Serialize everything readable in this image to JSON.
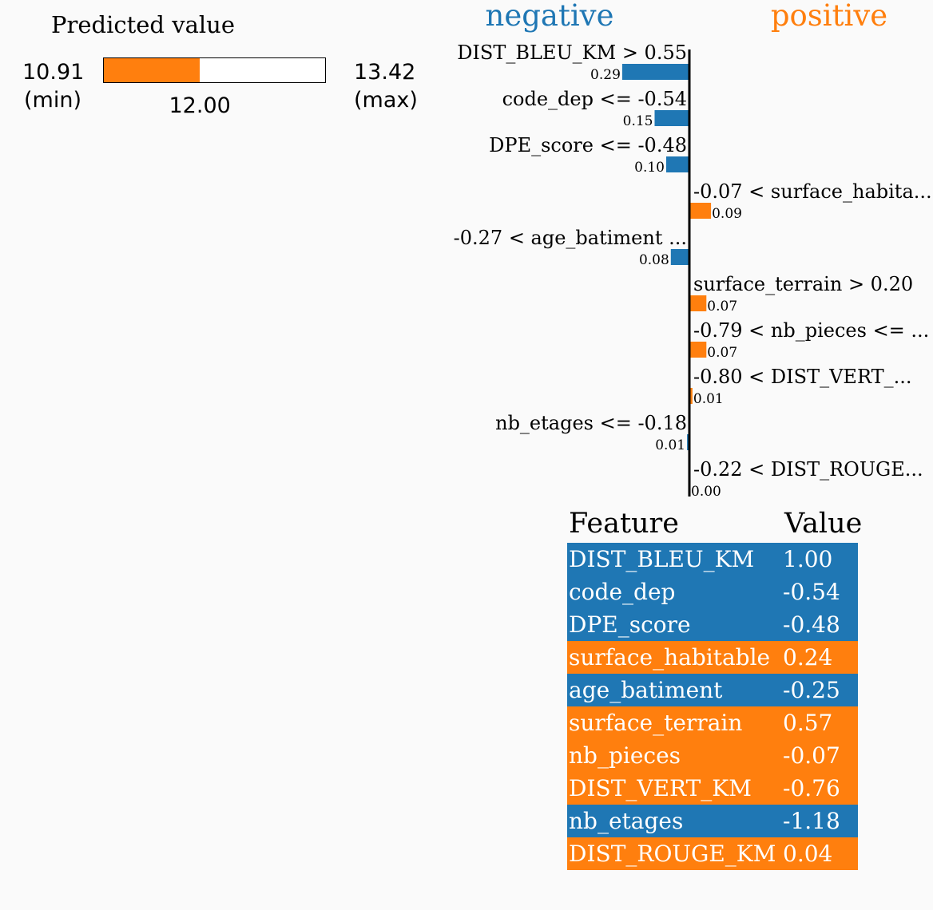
{
  "predicted": {
    "title": "Predicted value",
    "min": "10.91",
    "max": "13.42",
    "min_label": "(min)",
    "max_label": "(max)",
    "value": "12.00",
    "min_num": 10.91,
    "max_num": 13.42,
    "value_num": 12.0,
    "fill_color": "#ff7f0e"
  },
  "chart_data": {
    "type": "bar",
    "negative_label": "negative",
    "positive_label": "positive",
    "negative_color": "#1f77b4",
    "positive_color": "#ff7f0e",
    "categories": [
      "DIST_BLEU_KM > 0.55",
      "code_dep <= -0.54",
      "DPE_score <= -0.48",
      "-0.07 < surface_habita...",
      "-0.27 < age_batiment ...",
      "surface_terrain > 0.20",
      "-0.79 < nb_pieces <= ...",
      "-0.80 < DIST_VERT_...",
      "nb_etages <= -0.18",
      "-0.22 < DIST_ROUGE..."
    ],
    "values": [
      -0.29,
      -0.15,
      -0.1,
      0.09,
      -0.08,
      0.07,
      0.07,
      0.01,
      -0.01,
      0.0
    ],
    "value_labels": [
      "0.29",
      "0.15",
      "0.10",
      "0.09",
      "0.08",
      "0.07",
      "0.07",
      "0.01",
      "0.01",
      "0.00"
    ]
  },
  "table": {
    "header_feature": "Feature",
    "header_value": "Value",
    "rows": [
      {
        "feature": "DIST_BLEU_KM",
        "value": "1.00",
        "side": "negative"
      },
      {
        "feature": "code_dep",
        "value": "-0.54",
        "side": "negative"
      },
      {
        "feature": "DPE_score",
        "value": "-0.48",
        "side": "negative"
      },
      {
        "feature": "surface_habitable",
        "value": "0.24",
        "side": "positive"
      },
      {
        "feature": "age_batiment",
        "value": "-0.25",
        "side": "negative"
      },
      {
        "feature": "surface_terrain",
        "value": "0.57",
        "side": "positive"
      },
      {
        "feature": "nb_pieces",
        "value": "-0.07",
        "side": "positive"
      },
      {
        "feature": "DIST_VERT_KM",
        "value": "-0.76",
        "side": "positive"
      },
      {
        "feature": "nb_etages",
        "value": "-1.18",
        "side": "negative"
      },
      {
        "feature": "DIST_ROUGE_KM",
        "value": "0.04",
        "side": "positive"
      }
    ]
  }
}
